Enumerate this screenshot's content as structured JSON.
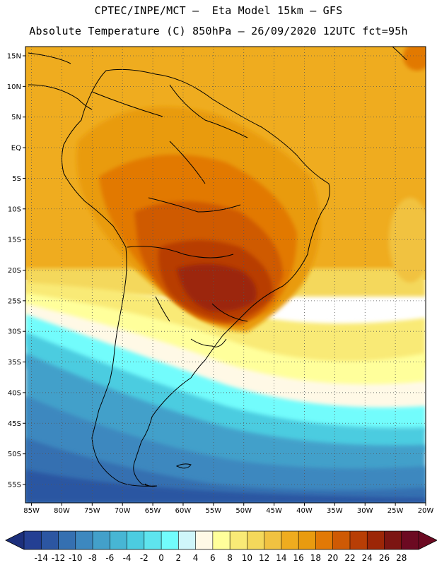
{
  "header": {
    "line1": "CPTEC/INPE/MCT –  Eta Model 15km – GFS",
    "line2": "Absolute Temperature (C) 850hPa – 26/09/2020 12UTC fct=95h"
  },
  "map": {
    "region": "South America",
    "lat_labels": [
      "15N",
      "10N",
      "5N",
      "EQ",
      "5S",
      "10S",
      "15S",
      "20S",
      "25S",
      "30S",
      "35S",
      "40S",
      "45S",
      "50S",
      "55S"
    ],
    "lon_labels": [
      "85W",
      "80W",
      "75W",
      "70W",
      "65W",
      "60W",
      "55W",
      "50W",
      "45W",
      "40W",
      "35W",
      "30W",
      "25W",
      "20W"
    ],
    "lat_range": [
      -58,
      16.5
    ],
    "lon_range": [
      -86,
      -20
    ]
  },
  "colorbar": {
    "tick_labels": [
      "-14",
      "-12",
      "-10",
      "-8",
      "-6",
      "-4",
      "-2",
      "0",
      "2",
      "4",
      "6",
      "8",
      "10",
      "12",
      "14",
      "16",
      "18",
      "20",
      "22",
      "24",
      "26",
      "28"
    ],
    "colors": [
      "#243f93",
      "#2c56a2",
      "#3570b1",
      "#3d88bf",
      "#43a0ca",
      "#47b6d4",
      "#4ccce0",
      "#5ee4ee",
      "#72fcfc",
      "#cff6fa",
      "#fff9e6",
      "#ffff9b",
      "#f9ea76",
      "#f4d85b",
      "#f1c241",
      "#efac1f",
      "#e99b0f",
      "#e27906",
      "#cf5a04",
      "#b83e05",
      "#9c2607",
      "#7c1512",
      "#6c0a22"
    ],
    "under_color": "#1c2f7c",
    "over_color": "#6c0a22"
  }
}
